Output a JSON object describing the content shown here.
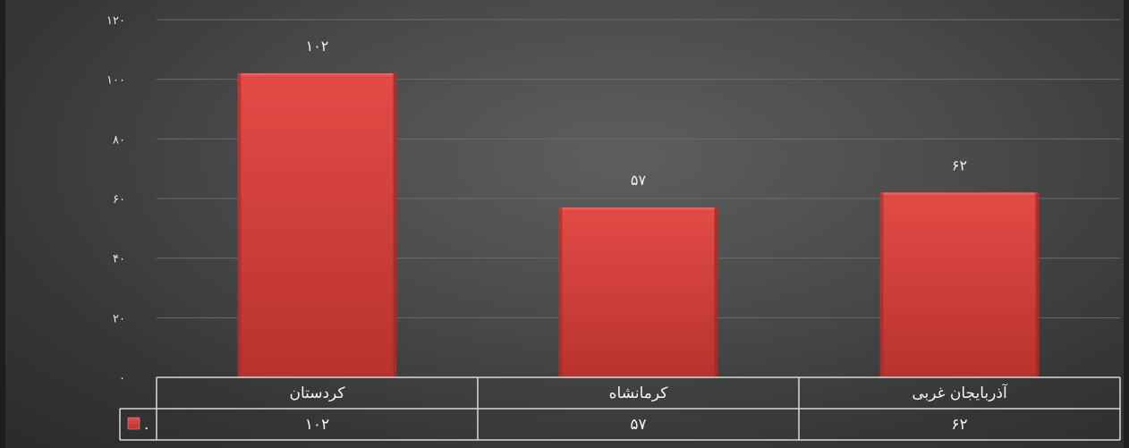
{
  "chart_data": {
    "type": "bar",
    "categories": [
      "کردستان",
      "کرمانشاه",
      "آذربایجان غربی"
    ],
    "series": [
      {
        "name": ".",
        "values": [
          102,
          57,
          62
        ],
        "labels": [
          "۱۰۲",
          "۵۷",
          "۶۲"
        ],
        "color": "#d9403c"
      }
    ],
    "ylim": [
      0,
      120
    ],
    "yticks": [
      0,
      20,
      40,
      60,
      80,
      100,
      120
    ],
    "ytick_labels": [
      "۰",
      "۲۰",
      "۴۰",
      "۶۰",
      "۸۰",
      "۱۰۰",
      "۱۲۰"
    ],
    "grid": true,
    "data_table": true,
    "colors": {
      "bar": "#d9403c",
      "bar_dark": "#9e2a27",
      "grid": "#6a6a6a",
      "table_border": "#d8d8d8"
    }
  }
}
